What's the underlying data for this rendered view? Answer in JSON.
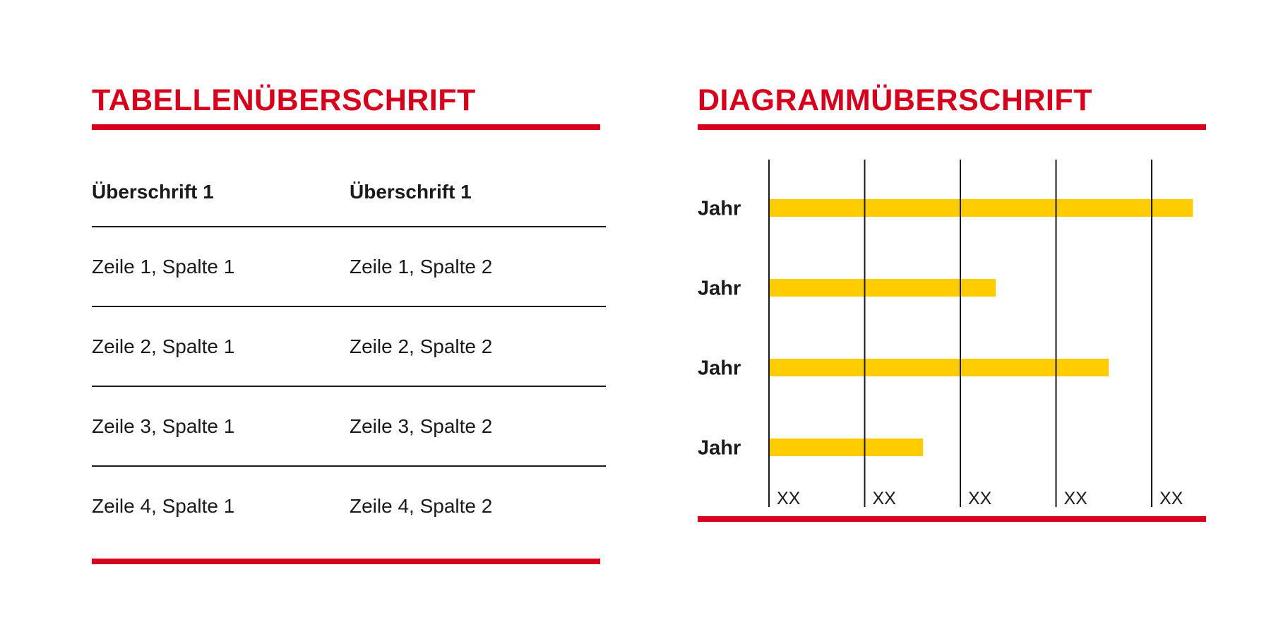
{
  "table": {
    "title": "TABELLENÜBERSCHRIFT",
    "headers": [
      "Überschrift 1",
      "Überschrift 1"
    ],
    "rows": [
      [
        "Zeile 1, Spalte 1",
        "Zeile 1, Spalte 2"
      ],
      [
        "Zeile 2, Spalte 1",
        "Zeile 2, Spalte 2"
      ],
      [
        "Zeile 3, Spalte 1",
        "Zeile 3, Spalte 2"
      ],
      [
        "Zeile 4, Spalte 1",
        "Zeile 4, Spalte 2"
      ]
    ]
  },
  "chart_data": {
    "type": "bar",
    "orientation": "horizontal",
    "title": "DIAGRAMMÜBERSCHRIFT",
    "categories": [
      "Jahr",
      "Jahr",
      "Jahr",
      "Jahr"
    ],
    "values": [
      4.43,
      2.37,
      3.55,
      1.61
    ],
    "xlim": [
      0,
      4.6
    ],
    "xticks": [
      0,
      1,
      2,
      3,
      4
    ],
    "xtick_labels": [
      "XX",
      "XX",
      "XX",
      "XX",
      "XX"
    ],
    "xlabel": "",
    "ylabel": "",
    "grid": "vertical",
    "legend": "none",
    "bar_color": "#ffcc00",
    "title_color": "#d6001c"
  },
  "colors": {
    "accent": "#d6001c",
    "bar": "#ffcc00",
    "text": "#1a1a1a"
  }
}
